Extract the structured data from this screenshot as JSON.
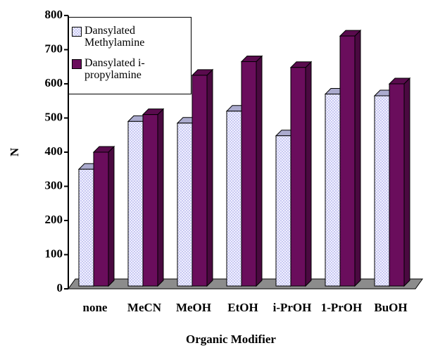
{
  "chart_data": {
    "type": "bar3d",
    "x_label": "Organic Modifier",
    "y_label": "N",
    "categories": [
      "none",
      "MeCN",
      "MeOH",
      "EtOH",
      "i-PrOH",
      "1-PrOH",
      "BuOH"
    ],
    "series": [
      {
        "name": "Dansylated Methylamine",
        "color": "#c9c9f2",
        "values": [
          350,
          490,
          485,
          520,
          448,
          570,
          565
        ]
      },
      {
        "name": "Dansylated i-propylamine",
        "color": "#6a0d5c",
        "values": [
          400,
          510,
          625,
          665,
          648,
          740,
          600
        ]
      }
    ],
    "ylim": [
      0,
      800
    ],
    "yticks": [
      0,
      100,
      200,
      300,
      400,
      500,
      600,
      700,
      800
    ]
  }
}
